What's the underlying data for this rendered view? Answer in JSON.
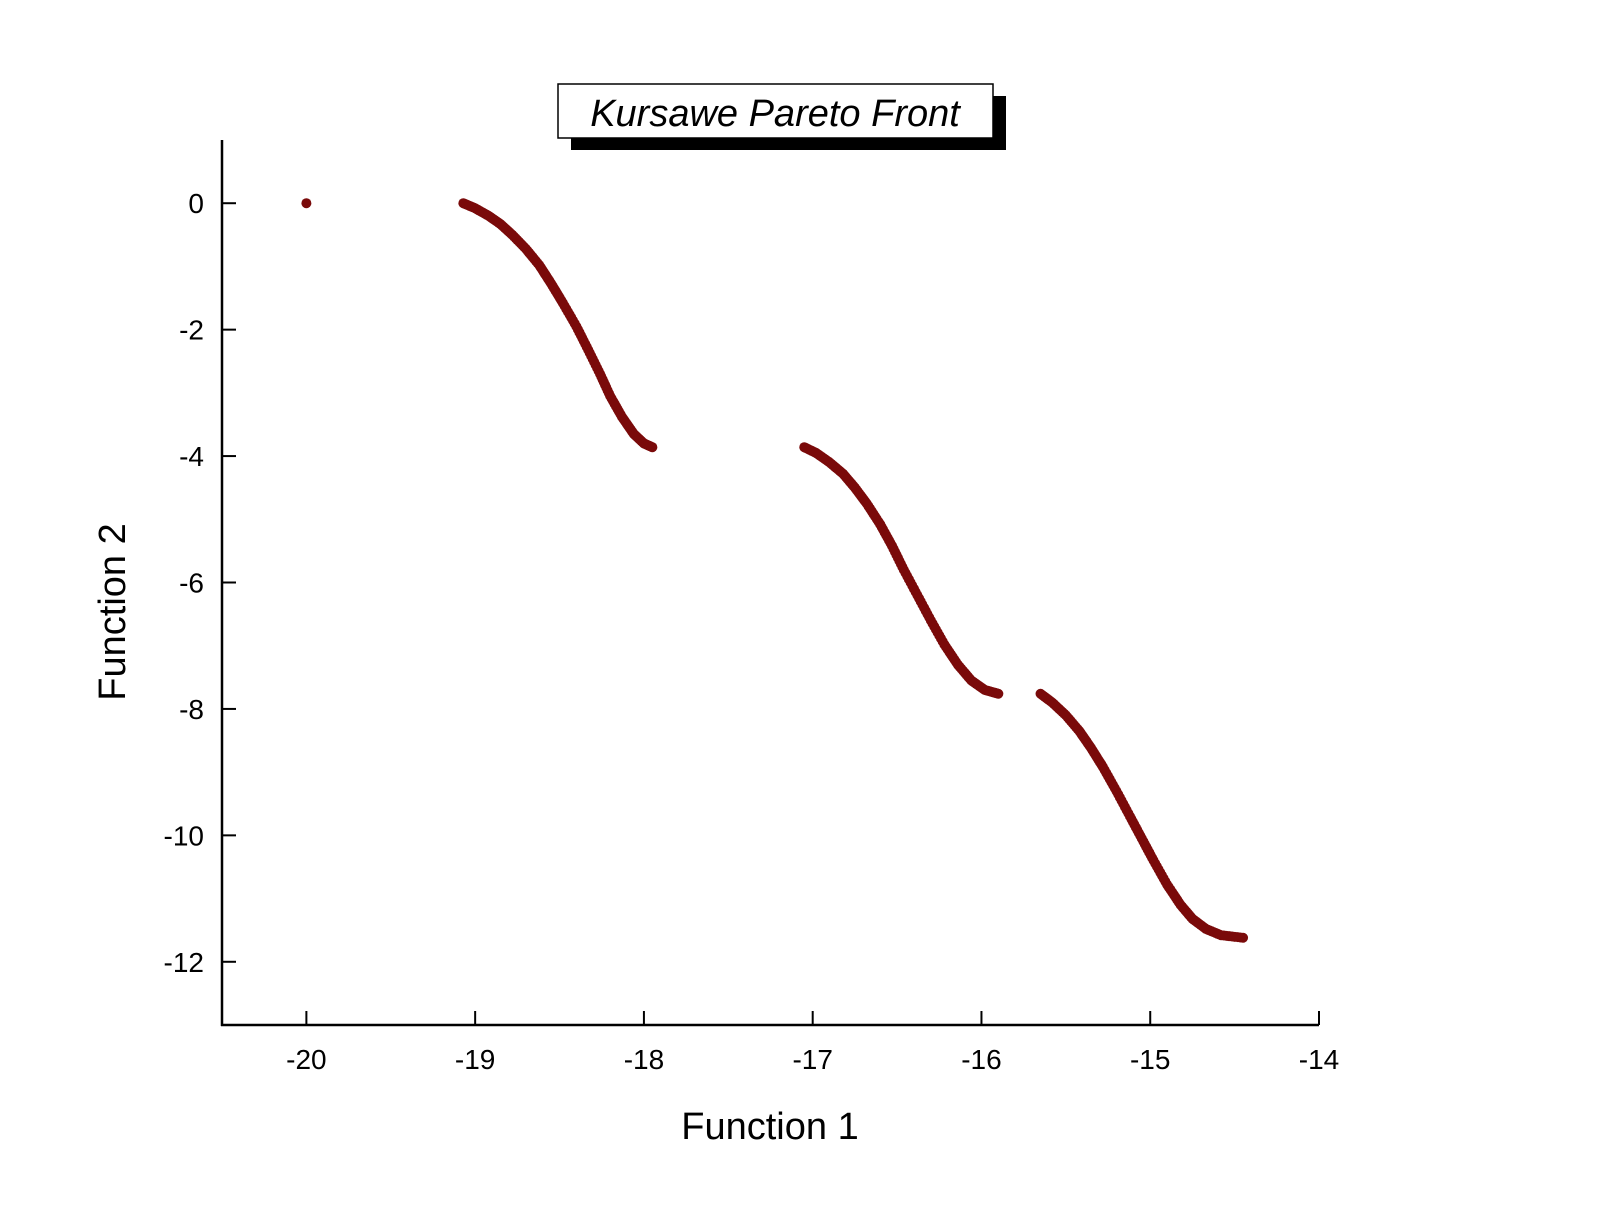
{
  "chart_data": {
    "type": "scatter",
    "title": "Kursawe Pareto Front",
    "xlabel": "Function 1",
    "ylabel": "Function 2",
    "xlim": [
      -20.5,
      -14
    ],
    "ylim": [
      -13,
      1
    ],
    "xticks": [
      -20,
      -19,
      -18,
      -17,
      -16,
      -15,
      -14
    ],
    "yticks": [
      0,
      -2,
      -4,
      -6,
      -8,
      -10,
      -12
    ],
    "grid": false,
    "legend": "none",
    "marker_color": "#7a0a0a",
    "series": [
      {
        "points": [
          [
            -20.0,
            0.0
          ],
          [
            -19.07,
            0.0
          ],
          [
            -19.0,
            -0.08
          ],
          [
            -18.92,
            -0.2
          ],
          [
            -18.85,
            -0.33
          ],
          [
            -18.78,
            -0.5
          ],
          [
            -18.7,
            -0.72
          ],
          [
            -18.62,
            -0.98
          ],
          [
            -18.55,
            -1.27
          ],
          [
            -18.48,
            -1.58
          ],
          [
            -18.4,
            -1.95
          ],
          [
            -18.33,
            -2.32
          ],
          [
            -18.26,
            -2.7
          ],
          [
            -18.2,
            -3.05
          ],
          [
            -18.13,
            -3.38
          ],
          [
            -18.06,
            -3.65
          ],
          [
            -18.0,
            -3.8
          ],
          [
            -17.95,
            -3.86
          ],
          [
            -17.05,
            -3.86
          ],
          [
            -16.98,
            -3.95
          ],
          [
            -16.9,
            -4.1
          ],
          [
            -16.82,
            -4.28
          ],
          [
            -16.75,
            -4.5
          ],
          [
            -16.68,
            -4.75
          ],
          [
            -16.6,
            -5.08
          ],
          [
            -16.53,
            -5.42
          ],
          [
            -16.46,
            -5.8
          ],
          [
            -16.38,
            -6.2
          ],
          [
            -16.3,
            -6.6
          ],
          [
            -16.22,
            -6.98
          ],
          [
            -16.14,
            -7.3
          ],
          [
            -16.06,
            -7.55
          ],
          [
            -15.98,
            -7.7
          ],
          [
            -15.9,
            -7.76
          ],
          [
            -15.65,
            -7.76
          ],
          [
            -15.58,
            -7.9
          ],
          [
            -15.5,
            -8.1
          ],
          [
            -15.42,
            -8.35
          ],
          [
            -15.35,
            -8.62
          ],
          [
            -15.28,
            -8.92
          ],
          [
            -15.2,
            -9.3
          ],
          [
            -15.12,
            -9.7
          ],
          [
            -15.05,
            -10.05
          ],
          [
            -14.98,
            -10.4
          ],
          [
            -14.9,
            -10.78
          ],
          [
            -14.82,
            -11.1
          ],
          [
            -14.75,
            -11.32
          ],
          [
            -14.67,
            -11.48
          ],
          [
            -14.58,
            -11.58
          ],
          [
            -14.45,
            -11.62
          ]
        ]
      }
    ]
  }
}
